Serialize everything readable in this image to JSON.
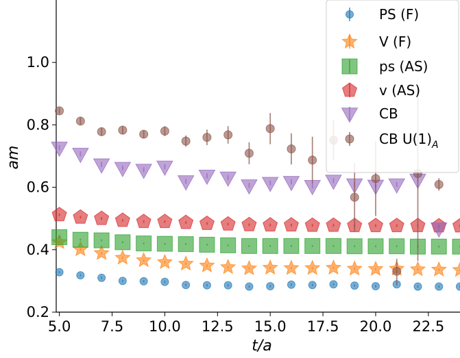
{
  "chart_data": {
    "type": "scatter",
    "xlabel": "t/a",
    "ylabel": "am",
    "xlim": [
      4.85,
      24.0
    ],
    "ylim": [
      0.2,
      1.2
    ],
    "xticks": [
      5.0,
      7.5,
      10.0,
      12.5,
      15.0,
      17.5,
      20.0,
      22.5
    ],
    "xtick_labels": [
      "5.0",
      "7.5",
      "10.0",
      "12.5",
      "15.0",
      "17.5",
      "20.0",
      "22.5"
    ],
    "yticks": [
      0.2,
      0.4,
      0.6,
      0.8,
      1.0
    ],
    "ytick_labels": [
      "0.2",
      "0.4",
      "0.6",
      "0.8",
      "1.0"
    ],
    "legend_position": "top-right",
    "series": [
      {
        "name": "PS (F)",
        "marker": "circle",
        "color": "#1f77b4",
        "x": [
          5,
          6,
          7,
          8,
          9,
          10,
          11,
          12,
          13,
          14,
          15,
          16,
          17,
          18,
          19,
          20,
          21,
          22,
          23,
          24
        ],
        "y": [
          0.328,
          0.318,
          0.31,
          0.3,
          0.299,
          0.297,
          0.287,
          0.286,
          0.286,
          0.282,
          0.283,
          0.288,
          0.287,
          0.289,
          0.285,
          0.283,
          0.289,
          0.282,
          0.282,
          0.282
        ],
        "err": [
          0.004,
          0.004,
          0.004,
          0.004,
          0.004,
          0.004,
          0.004,
          0.004,
          0.004,
          0.004,
          0.004,
          0.004,
          0.004,
          0.004,
          0.004,
          0.004,
          0.004,
          0.004,
          0.004,
          0.004
        ]
      },
      {
        "name": "V (F)",
        "marker": "star",
        "color": "#ff7f0e",
        "x": [
          5,
          6,
          7,
          8,
          9,
          10,
          11,
          12,
          13,
          14,
          15,
          16,
          17,
          18,
          19,
          20,
          21,
          22,
          23,
          24
        ],
        "y": [
          0.424,
          0.401,
          0.389,
          0.374,
          0.366,
          0.36,
          0.355,
          0.349,
          0.344,
          0.34,
          0.342,
          0.341,
          0.341,
          0.342,
          0.339,
          0.338,
          0.339,
          0.337,
          0.336,
          0.335
        ],
        "err": [
          0.004,
          0.004,
          0.004,
          0.004,
          0.004,
          0.004,
          0.004,
          0.004,
          0.004,
          0.004,
          0.004,
          0.004,
          0.004,
          0.004,
          0.004,
          0.004,
          0.004,
          0.004,
          0.004,
          0.004
        ]
      },
      {
        "name": "ps (AS)",
        "marker": "square",
        "color": "#2ca02c",
        "x": [
          5,
          6,
          7,
          8,
          9,
          10,
          11,
          12,
          13,
          14,
          15,
          16,
          17,
          18,
          19,
          20,
          21,
          22,
          23,
          24
        ],
        "y": [
          0.44,
          0.432,
          0.43,
          0.424,
          0.42,
          0.419,
          0.418,
          0.416,
          0.414,
          0.412,
          0.412,
          0.412,
          0.412,
          0.412,
          0.411,
          0.411,
          0.411,
          0.41,
          0.41,
          0.41
        ],
        "err": [
          0.003,
          0.003,
          0.003,
          0.003,
          0.003,
          0.003,
          0.003,
          0.003,
          0.003,
          0.003,
          0.003,
          0.003,
          0.003,
          0.003,
          0.003,
          0.003,
          0.003,
          0.003,
          0.003,
          0.003
        ]
      },
      {
        "name": "v (AS)",
        "marker": "pentagon",
        "color": "#d62728",
        "x": [
          5,
          6,
          7,
          8,
          9,
          10,
          11,
          12,
          13,
          14,
          15,
          16,
          17,
          18,
          19,
          20,
          21,
          22,
          23,
          24
        ],
        "y": [
          0.512,
          0.504,
          0.5,
          0.494,
          0.49,
          0.49,
          0.487,
          0.484,
          0.482,
          0.48,
          0.479,
          0.479,
          0.478,
          0.478,
          0.477,
          0.477,
          0.477,
          0.477,
          0.476,
          0.476
        ],
        "err": [
          0.004,
          0.004,
          0.004,
          0.004,
          0.004,
          0.004,
          0.004,
          0.004,
          0.004,
          0.004,
          0.004,
          0.004,
          0.004,
          0.004,
          0.004,
          0.004,
          0.004,
          0.004,
          0.004,
          0.004
        ]
      },
      {
        "name": "CB",
        "marker": "triangle-down",
        "color": "#9467bd",
        "x": [
          5,
          6,
          7,
          8,
          9,
          10,
          11,
          12,
          13,
          14,
          15,
          16,
          17,
          18,
          19,
          20,
          21,
          22,
          23
        ],
        "y": [
          0.727,
          0.707,
          0.673,
          0.662,
          0.656,
          0.666,
          0.619,
          0.637,
          0.631,
          0.606,
          0.614,
          0.617,
          0.604,
          0.621,
          0.609,
          0.605,
          0.609,
          0.624,
          0.468
        ],
        "err": [
          0.008,
          0.008,
          0.008,
          0.008,
          0.008,
          0.008,
          0.008,
          0.008,
          0.008,
          0.008,
          0.008,
          0.008,
          0.008,
          0.008,
          0.008,
          0.008,
          0.008,
          0.008,
          0.008
        ]
      },
      {
        "name": "CB U(1)_A",
        "marker": "circle",
        "color": "#8c564b",
        "x": [
          5,
          6,
          7,
          8,
          9,
          10,
          11,
          12,
          13,
          14,
          15,
          16,
          17,
          18,
          19,
          20,
          21,
          22,
          23
        ],
        "y": [
          0.845,
          0.812,
          0.778,
          0.783,
          0.77,
          0.78,
          0.748,
          0.76,
          0.768,
          0.709,
          0.788,
          0.723,
          0.687,
          0.751,
          0.568,
          0.628,
          0.331,
          0.644,
          0.609
        ],
        "err": [
          0.01,
          0.012,
          0.012,
          0.012,
          0.012,
          0.016,
          0.018,
          0.025,
          0.028,
          0.035,
          0.05,
          0.05,
          0.075,
          0.065,
          0.11,
          0.12,
          0.04,
          0.28,
          0.02
        ]
      }
    ]
  },
  "legend": {
    "items": [
      {
        "label": "PS (F)",
        "sub": ""
      },
      {
        "label": "V (F)",
        "sub": ""
      },
      {
        "label": "ps (AS)",
        "sub": ""
      },
      {
        "label": "v (AS)",
        "sub": ""
      },
      {
        "label": "CB",
        "sub": ""
      },
      {
        "label": "CB U(1)",
        "sub": "A"
      }
    ]
  }
}
